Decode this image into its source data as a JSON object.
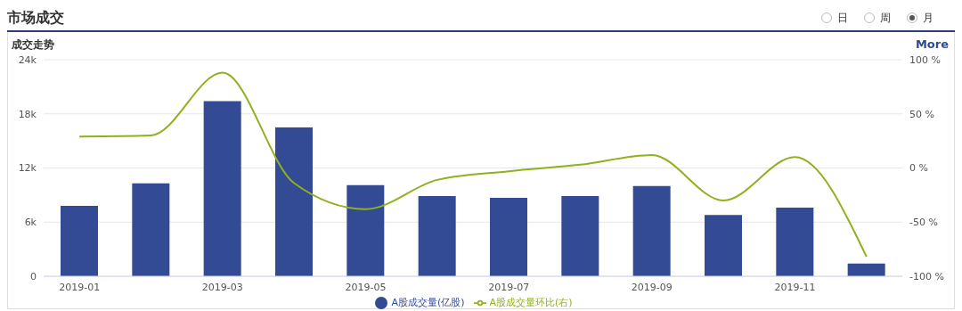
{
  "chart_data": {
    "type": "bar",
    "title": "市场成交",
    "subtitle": "成交走势",
    "annotations": [
      "日",
      "周",
      "月",
      "More"
    ],
    "categories": [
      "2019-01",
      null,
      "2019-03",
      null,
      "2019-05",
      null,
      "2019-07",
      null,
      "2019-09",
      null,
      "2019-11",
      null
    ],
    "series": [
      {
        "name": "A股成交量(亿股)",
        "color": "#334a94",
        "values": [
          7800,
          10300,
          19400,
          16500,
          10100,
          8900,
          8700,
          8900,
          10000,
          6800,
          7600,
          1400
        ]
      },
      {
        "name": "A股成交量环比(右)",
        "type": "line",
        "axis": "y2",
        "color": "#8fb01f",
        "values": [
          29,
          30,
          88,
          -14,
          -38,
          -11,
          -3,
          3,
          12,
          -30,
          10,
          -82
        ]
      }
    ],
    "ylim": [
      0,
      24000
    ],
    "yticks": [
      {
        "value": 0,
        "label": "0"
      },
      {
        "value": 6000,
        "label": "6k"
      },
      {
        "value": 12000,
        "label": "12k"
      },
      {
        "value": 18000,
        "label": "18k"
      },
      {
        "value": 24000,
        "label": "24k"
      }
    ],
    "y2lim": [
      -100,
      100
    ],
    "y2ticks": [
      {
        "value": -100,
        "label": "-100 %"
      },
      {
        "value": -50,
        "label": "-50 %"
      },
      {
        "value": 0,
        "label": "0 %"
      },
      {
        "value": 50,
        "label": "50 %"
      },
      {
        "value": 100,
        "label": "100 %"
      }
    ],
    "grid": "y",
    "legend": "bottom",
    "marker": "none"
  }
}
